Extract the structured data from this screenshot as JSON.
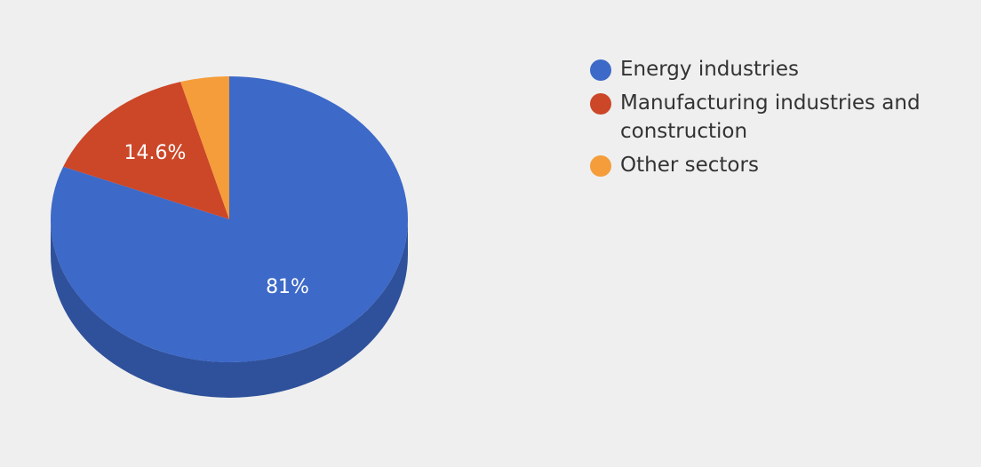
{
  "chart_data": {
    "type": "pie",
    "categories": [
      "Energy industries",
      "Manufacturing industries and construction",
      "Other sectors"
    ],
    "values": [
      81,
      14.6,
      4.4
    ],
    "data_labels": [
      "81%",
      "14.6%",
      ""
    ],
    "colors": [
      "#3d69c8",
      "#cc4628",
      "#f49d3a"
    ],
    "side_colors": [
      "#2f519b",
      "#9c351d",
      "#bf7a2b"
    ],
    "three_d": true,
    "legend_position": "right"
  }
}
